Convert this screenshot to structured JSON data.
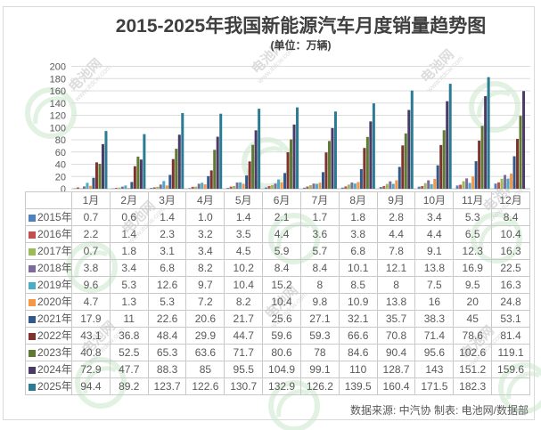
{
  "title": "2015-2025年我国新能源汽车月度销量趋势图",
  "subtitle": "(单位：万辆)",
  "source_note": "数据来源: 中汽协  制表: 电池网/数据部",
  "watermark": {
    "brand": "电池网",
    "site": "www.itdcw.com"
  },
  "chart_data": {
    "type": "bar",
    "title": "2015-2025年我国新能源汽车月度销量趋势图",
    "unit": "万辆",
    "xlabel": "",
    "ylabel": "",
    "ylim": [
      0,
      200
    ],
    "ytick_step": 20,
    "grid": true,
    "legend_position": "table-row-headers",
    "categories": [
      "1月",
      "2月",
      "3月",
      "4月",
      "5月",
      "6月",
      "7月",
      "8月",
      "9月",
      "10月",
      "11月",
      "12月"
    ],
    "series": [
      {
        "name": "2015年",
        "color": "#4F81BD",
        "values": [
          "0.7",
          "0.6",
          "1.4",
          "1.0",
          "1.4",
          "2.1",
          "1.7",
          "1.8",
          "2.8",
          "3.4",
          "5.3",
          "8.4"
        ]
      },
      {
        "name": "2016年",
        "color": "#C0504D",
        "values": [
          "2.2",
          "1.4",
          "2.3",
          "3.2",
          "3.5",
          "4.4",
          "3.6",
          "3.8",
          "4.4",
          "4.4",
          "6.5",
          "10.4"
        ]
      },
      {
        "name": "2017年",
        "color": "#9BBB59",
        "values": [
          "0.7",
          "1.8",
          "3.1",
          "3.4",
          "4.5",
          "5.9",
          "5.7",
          "6.8",
          "7.8",
          "9.1",
          "12.3",
          "16.3"
        ]
      },
      {
        "name": "2018年",
        "color": "#7E6B9D",
        "values": [
          "3.8",
          "3.4",
          "6.8",
          "8.2",
          "10.2",
          "8.4",
          "8.4",
          "10.1",
          "12.1",
          "13.8",
          "16.9",
          "22.5"
        ]
      },
      {
        "name": "2019年",
        "color": "#4BACC6",
        "values": [
          "9.6",
          "5.3",
          "12.6",
          "9.7",
          "10.4",
          "15.2",
          "8",
          "8.5",
          "8",
          "7.5",
          "9.5",
          "16.3"
        ]
      },
      {
        "name": "2020年",
        "color": "#F79646",
        "values": [
          "4.7",
          "1.3",
          "5.3",
          "7.2",
          "8.2",
          "10.4",
          "9.8",
          "10.9",
          "13.8",
          "16",
          "20",
          "24.8"
        ]
      },
      {
        "name": "2021年",
        "color": "#30598C",
        "values": [
          "17.9",
          "11",
          "22.6",
          "20.6",
          "21.7",
          "25.6",
          "27.1",
          "32.1",
          "35.7",
          "38.3",
          "45",
          "53.1"
        ]
      },
      {
        "name": "2022年",
        "color": "#7E332D",
        "values": [
          "43.1",
          "36.8",
          "48.4",
          "29.9",
          "44.7",
          "59.6",
          "59.3",
          "66.6",
          "70.8",
          "71.4",
          "78.6",
          "81.4"
        ]
      },
      {
        "name": "2023年",
        "color": "#5E7A33",
        "values": [
          "40.8",
          "52.5",
          "65.3",
          "63.6",
          "71.7",
          "80.6",
          "78",
          "84.6",
          "90.4",
          "95.6",
          "102.6",
          "119.1"
        ]
      },
      {
        "name": "2024年",
        "color": "#4B3A66",
        "values": [
          "72.9",
          "47.7",
          "88.3",
          "85",
          "95.5",
          "104.9",
          "99.1",
          "110",
          "128.7",
          "143",
          "151.2",
          "159.6"
        ]
      },
      {
        "name": "2025年",
        "color": "#2B7C93",
        "values": [
          "94.4",
          "89.2",
          "123.7",
          "122.6",
          "130.7",
          "132.9",
          "126.2",
          "139.5",
          "160.4",
          "171.5",
          "182.3",
          ""
        ]
      }
    ]
  }
}
